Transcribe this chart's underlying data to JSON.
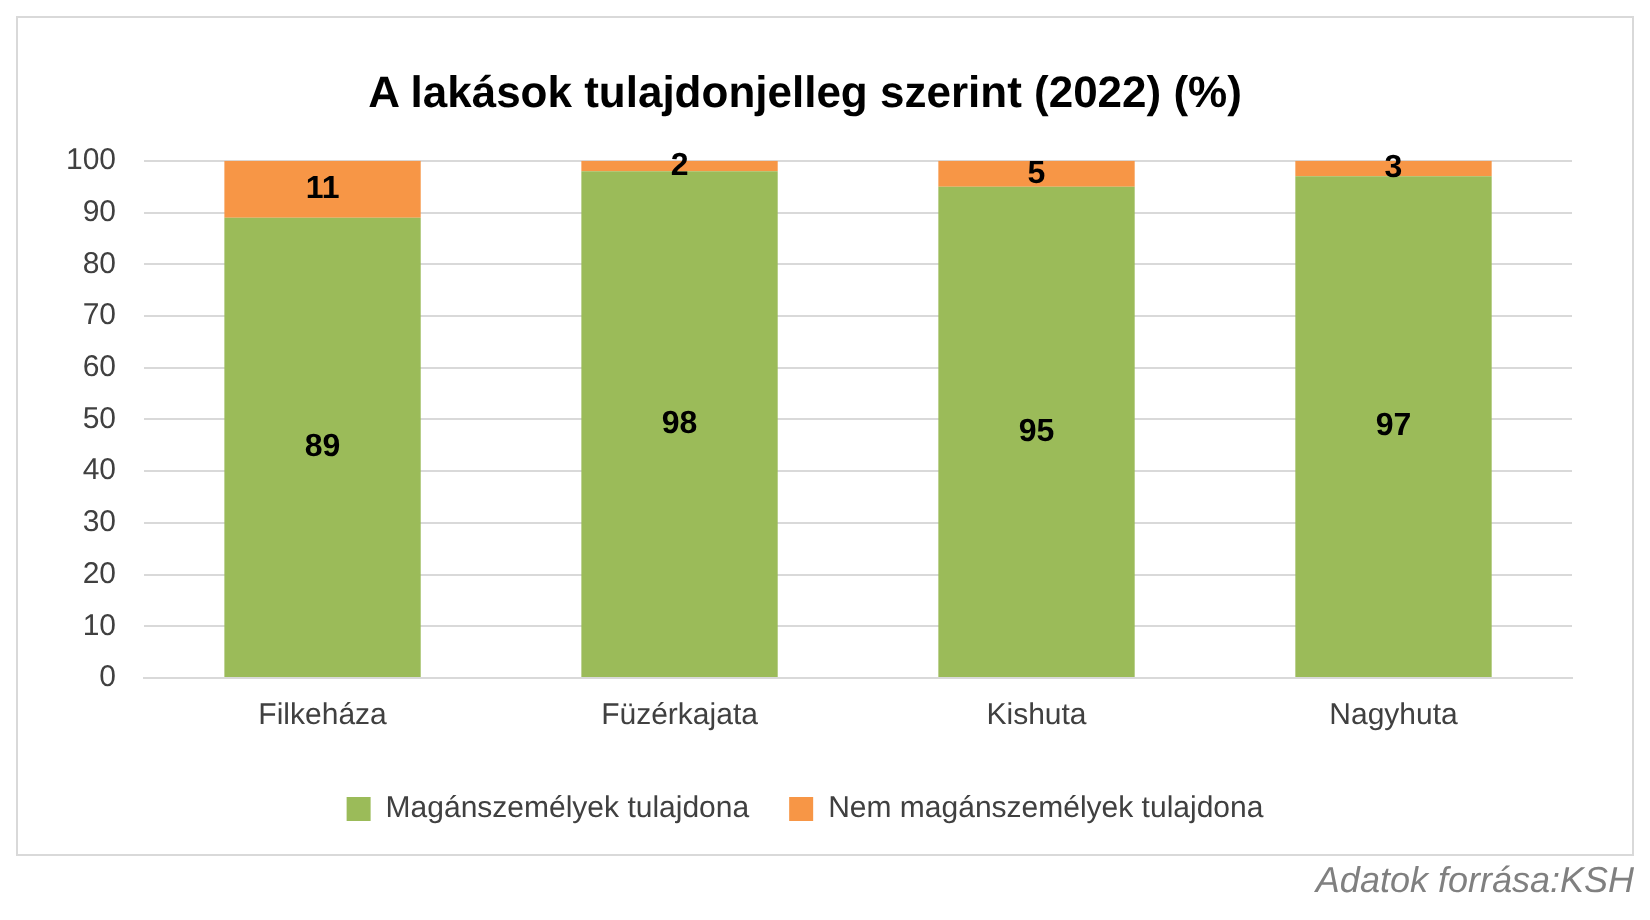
{
  "chart_data": {
    "type": "bar",
    "title": "A lakások tulajdonjelleg szerint (2022) (%)",
    "categories": [
      "Filkeháza",
      "Füzérkajata",
      "Kishuta",
      "Nagyhuta"
    ],
    "series": [
      {
        "name": "Magánszemélyek tulajdona",
        "color": "#9bbb59",
        "values": [
          89,
          98,
          95,
          97
        ]
      },
      {
        "name": "Nem magánszemélyek tulajdona",
        "color": "#f79646",
        "values": [
          11,
          2,
          5,
          3
        ]
      }
    ],
    "stacked": true,
    "ylim": [
      0,
      100
    ],
    "yticks": [
      0,
      10,
      20,
      30,
      40,
      50,
      60,
      70,
      80,
      90,
      100
    ],
    "grid": "y",
    "legend": "bottom",
    "data_labels": true,
    "annotations": [
      "Adatok forrása:KSH"
    ]
  }
}
